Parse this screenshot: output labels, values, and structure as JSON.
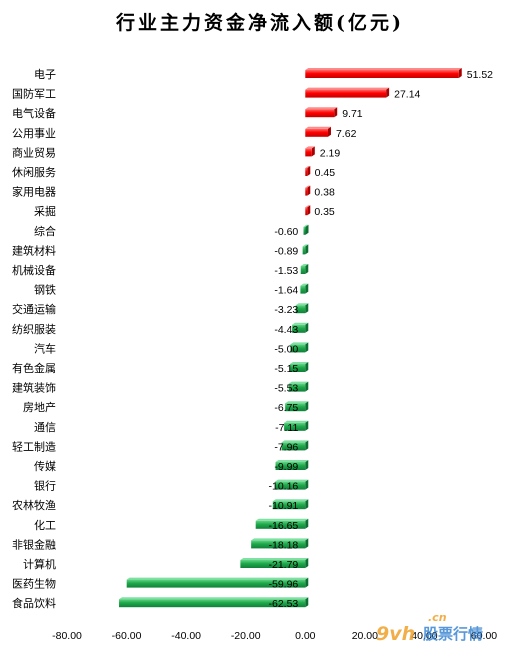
{
  "chart_data": {
    "type": "bar",
    "orientation": "horizontal",
    "title": "行业主力资金净流入额(亿元)",
    "categories": [
      "电子",
      "国防军工",
      "电气设备",
      "公用事业",
      "商业贸易",
      "休闲服务",
      "家用电器",
      "采掘",
      "综合",
      "建筑材料",
      "机械设备",
      "钢铁",
      "交通运输",
      "纺织服装",
      "汽车",
      "有色金属",
      "建筑装饰",
      "房地产",
      "通信",
      "轻工制造",
      "传媒",
      "银行",
      "农林牧渔",
      "化工",
      "非银金融",
      "计算机",
      "医药生物",
      "食品饮料"
    ],
    "values": [
      51.52,
      27.14,
      9.71,
      7.62,
      2.19,
      0.45,
      0.38,
      0.35,
      -0.6,
      -0.89,
      -1.53,
      -1.64,
      -3.23,
      -4.43,
      -5.0,
      -5.15,
      -5.53,
      -6.75,
      -7.11,
      -7.96,
      -9.99,
      -10.16,
      -10.91,
      -16.65,
      -18.18,
      -21.79,
      -59.96,
      -62.53
    ],
    "value_labels": [
      "51.52",
      "27.14",
      "9.71",
      "7.62",
      "2.19",
      "0.45",
      "0.38",
      "0.35",
      "-0.60",
      "-0.89",
      "-1.53",
      "-1.64",
      "-3.23",
      "-4.43",
      "-5.00",
      "-5.15",
      "-5.53",
      "-6.75",
      "-7.11",
      "-7.96",
      "-9.99",
      "-10.16",
      "-10.91",
      "-16.65",
      "-18.18",
      "-21.79",
      "-59.96",
      "-62.53"
    ],
    "xlim": [
      -80,
      60
    ],
    "x_ticks": [
      "-80.00",
      "-60.00",
      "-40.00",
      "-20.00",
      "0.00",
      "20.00",
      "40.00",
      "60.00"
    ],
    "grid": false,
    "legend": "none",
    "colors": {
      "positive": "#ff0000",
      "negative": "#1ea84a"
    }
  },
  "watermark": {
    "logo": "9vh",
    "domain": ".cn",
    "text": "股票行情"
  }
}
